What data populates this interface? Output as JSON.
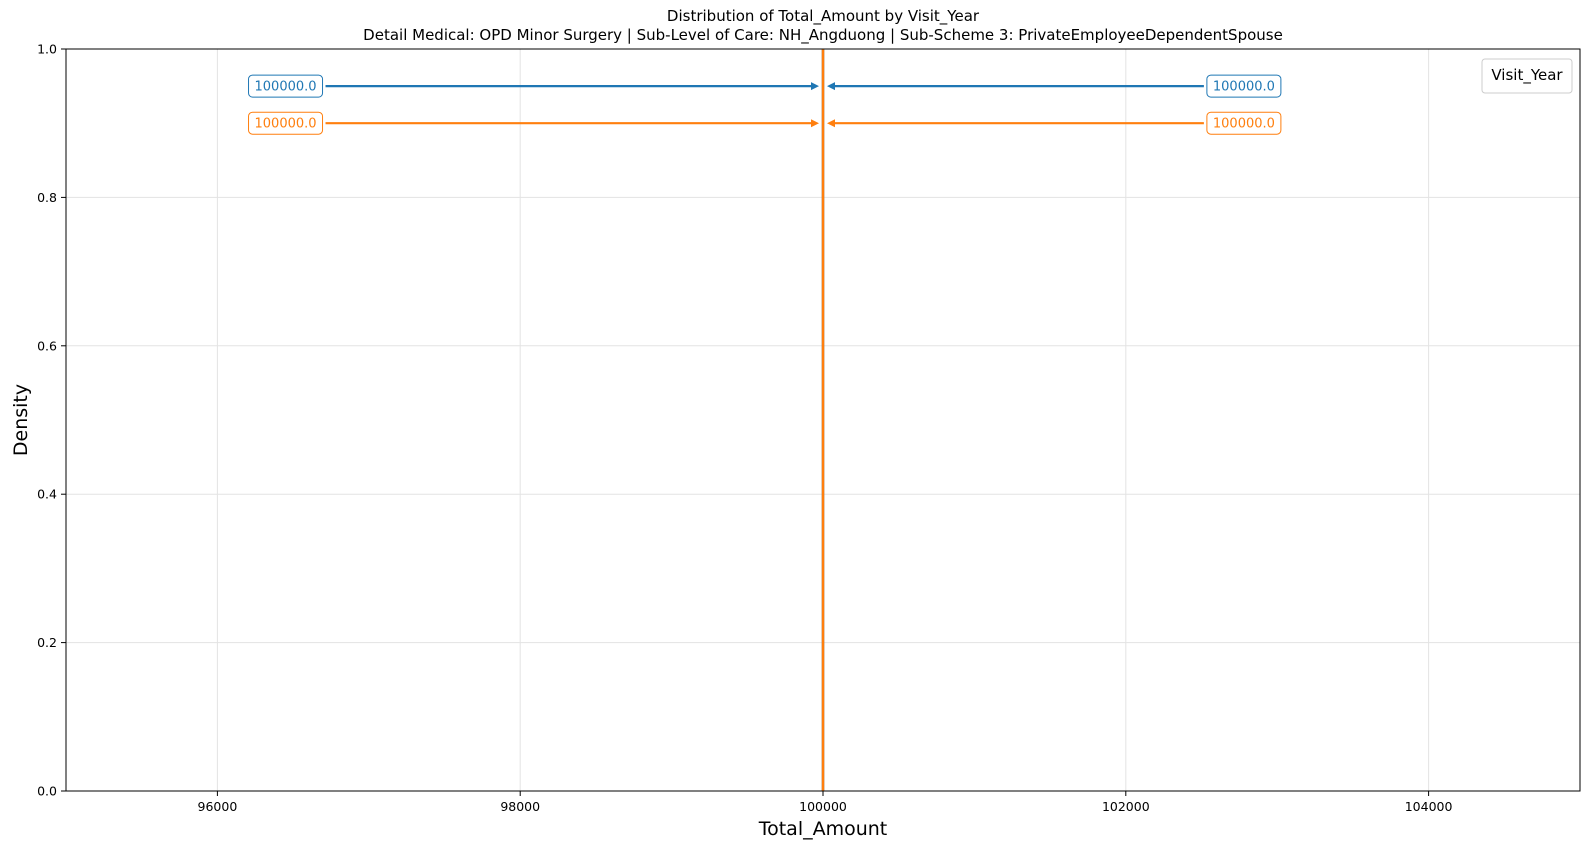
{
  "chart_data": {
    "type": "line",
    "title": "Distribution of Total_Amount by Visit_Year",
    "subtitle": "Detail Medical: OPD Minor Surgery | Sub-Level of Care: NH_Angduong | Sub-Scheme 3: PrivateEmployeeDependentSpouse",
    "xlabel": "Total_Amount",
    "ylabel": "Density",
    "xlim": [
      95000,
      105000
    ],
    "ylim": [
      0,
      1.0
    ],
    "x_ticks": [
      96000,
      98000,
      100000,
      102000,
      104000
    ],
    "x_tick_labels": [
      "96000",
      "98000",
      "100000",
      "102000",
      "104000"
    ],
    "y_ticks": [
      0.0,
      0.2,
      0.4,
      0.6,
      0.8,
      1.0
    ],
    "y_tick_labels": [
      "0.0",
      "0.2",
      "0.4",
      "0.6",
      "0.8",
      "1.0"
    ],
    "grid": true,
    "legend": {
      "title": "Visit_Year",
      "placement": "top-right",
      "entries": []
    },
    "series": [
      {
        "color": "#1f77b4",
        "vline_x": 100000
      },
      {
        "color": "#ff7f0e",
        "vline_x": 100000
      }
    ],
    "annotations": [
      {
        "text": "100000.0",
        "color": "#1f77b4",
        "target_x": 100000,
        "y": 0.95,
        "label_x": 96450
      },
      {
        "text": "100000.0",
        "color": "#1f77b4",
        "target_x": 100000,
        "y": 0.95,
        "label_x": 102780
      },
      {
        "text": "100000.0",
        "color": "#ff7f0e",
        "target_x": 100000,
        "y": 0.9,
        "label_x": 96450
      },
      {
        "text": "100000.0",
        "color": "#ff7f0e",
        "target_x": 100000,
        "y": 0.9,
        "label_x": 102780
      }
    ]
  }
}
